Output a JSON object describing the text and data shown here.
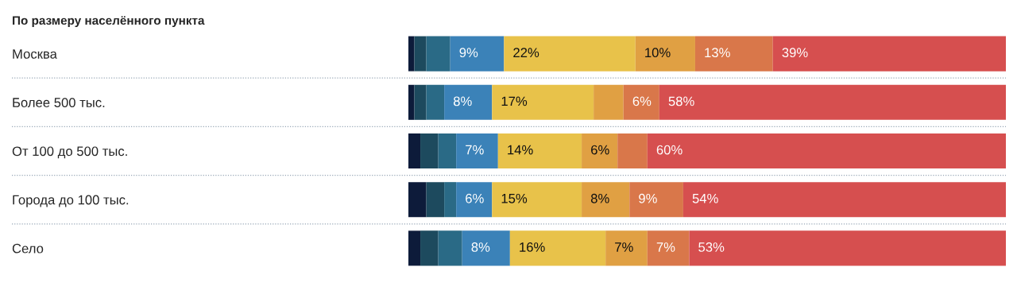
{
  "chart_data": {
    "type": "bar",
    "orientation": "horizontal",
    "stacked": true,
    "title": "По размеру населённого пункта",
    "categories": [
      "Москва",
      "Более 500 тыс.",
      "От 100 до 500 тыс.",
      "Города до 100 тыс.",
      "Село"
    ],
    "series": [
      {
        "color": "#0d1b3a",
        "values": [
          1,
          1,
          2,
          3,
          2
        ],
        "value_labels": [
          null,
          null,
          null,
          null,
          null
        ]
      },
      {
        "color": "#1d4a5e",
        "values": [
          2,
          2,
          3,
          3,
          3
        ],
        "value_labels": [
          null,
          null,
          null,
          null,
          null
        ]
      },
      {
        "color": "#2a6a86",
        "values": [
          4,
          3,
          3,
          2,
          4
        ],
        "value_labels": [
          null,
          null,
          null,
          null,
          null
        ]
      },
      {
        "color": "#3b82b8",
        "values": [
          9,
          8,
          7,
          6,
          8
        ],
        "value_labels": [
          "9%",
          "8%",
          "7%",
          "6%",
          "8%"
        ]
      },
      {
        "color": "#e8c24a",
        "values": [
          22,
          17,
          14,
          15,
          16
        ],
        "value_labels": [
          "22%",
          "17%",
          "14%",
          "15%",
          "16%"
        ]
      },
      {
        "color": "#e0a043",
        "values": [
          10,
          5,
          6,
          8,
          7
        ],
        "value_labels": [
          "10%",
          null,
          "6%",
          "8%",
          "7%"
        ]
      },
      {
        "color": "#d9774a",
        "values": [
          13,
          6,
          5,
          9,
          7
        ],
        "value_labels": [
          "13%",
          "6%",
          null,
          "9%",
          "7%"
        ]
      },
      {
        "color": "#d64f4f",
        "values": [
          39,
          58,
          60,
          54,
          53
        ],
        "value_labels": [
          "39%",
          "58%",
          "60%",
          "54%",
          "53%"
        ]
      }
    ],
    "legend": false,
    "grid": false
  }
}
